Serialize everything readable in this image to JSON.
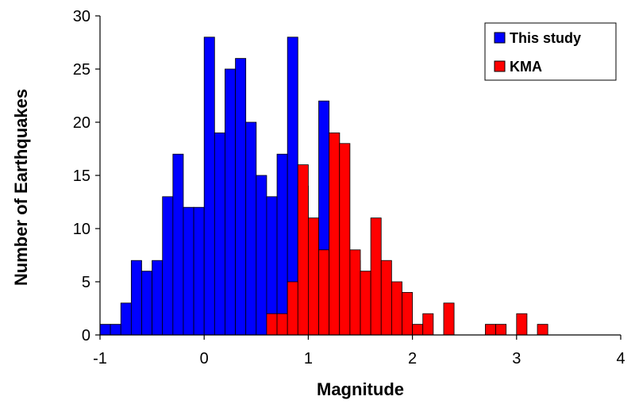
{
  "chart_data": {
    "type": "bar",
    "xlabel": "Magnitude",
    "ylabel": "Number of Earthquakes",
    "xlim": [
      -1,
      4
    ],
    "ylim": [
      0,
      30
    ],
    "x_ticks": [
      "-1",
      "0",
      "1",
      "2",
      "3",
      "4"
    ],
    "y_ticks": [
      "0",
      "5",
      "10",
      "15",
      "20",
      "25",
      "30"
    ],
    "bin_width": 0.1,
    "grid": false,
    "legend_position": "top-right",
    "series": [
      {
        "name": "This study",
        "color": "#0000FF",
        "bins": [
          {
            "x": -0.95,
            "y": 1
          },
          {
            "x": -0.85,
            "y": 1
          },
          {
            "x": -0.75,
            "y": 3
          },
          {
            "x": -0.65,
            "y": 7
          },
          {
            "x": -0.55,
            "y": 6
          },
          {
            "x": -0.45,
            "y": 7
          },
          {
            "x": -0.35,
            "y": 13
          },
          {
            "x": -0.25,
            "y": 17
          },
          {
            "x": -0.15,
            "y": 12
          },
          {
            "x": -0.05,
            "y": 12
          },
          {
            "x": 0.05,
            "y": 28
          },
          {
            "x": 0.15,
            "y": 19
          },
          {
            "x": 0.25,
            "y": 25
          },
          {
            "x": 0.35,
            "y": 26
          },
          {
            "x": 0.45,
            "y": 20
          },
          {
            "x": 0.55,
            "y": 15
          },
          {
            "x": 0.65,
            "y": 13
          },
          {
            "x": 0.75,
            "y": 17
          },
          {
            "x": 0.85,
            "y": 28
          },
          {
            "x": 0.95,
            "y": 14
          },
          {
            "x": 1.05,
            "y": 9
          },
          {
            "x": 1.15,
            "y": 22
          },
          {
            "x": 1.25,
            "y": 19
          },
          {
            "x": 1.35,
            "y": 8
          },
          {
            "x": 1.45,
            "y": 7
          }
        ]
      },
      {
        "name": "KMA",
        "color": "#FF0000",
        "bins": [
          {
            "x": 0.65,
            "y": 2
          },
          {
            "x": 0.75,
            "y": 2
          },
          {
            "x": 0.85,
            "y": 5
          },
          {
            "x": 0.95,
            "y": 16
          },
          {
            "x": 1.05,
            "y": 11
          },
          {
            "x": 1.15,
            "y": 8
          },
          {
            "x": 1.25,
            "y": 19
          },
          {
            "x": 1.35,
            "y": 18
          },
          {
            "x": 1.45,
            "y": 8
          },
          {
            "x": 1.55,
            "y": 6
          },
          {
            "x": 1.65,
            "y": 11
          },
          {
            "x": 1.75,
            "y": 7
          },
          {
            "x": 1.85,
            "y": 5
          },
          {
            "x": 1.95,
            "y": 4
          },
          {
            "x": 2.05,
            "y": 1
          },
          {
            "x": 2.15,
            "y": 2
          },
          {
            "x": 2.35,
            "y": 3
          },
          {
            "x": 2.75,
            "y": 1
          },
          {
            "x": 2.85,
            "y": 1
          },
          {
            "x": 3.05,
            "y": 2
          },
          {
            "x": 3.25,
            "y": 1
          }
        ]
      }
    ]
  }
}
